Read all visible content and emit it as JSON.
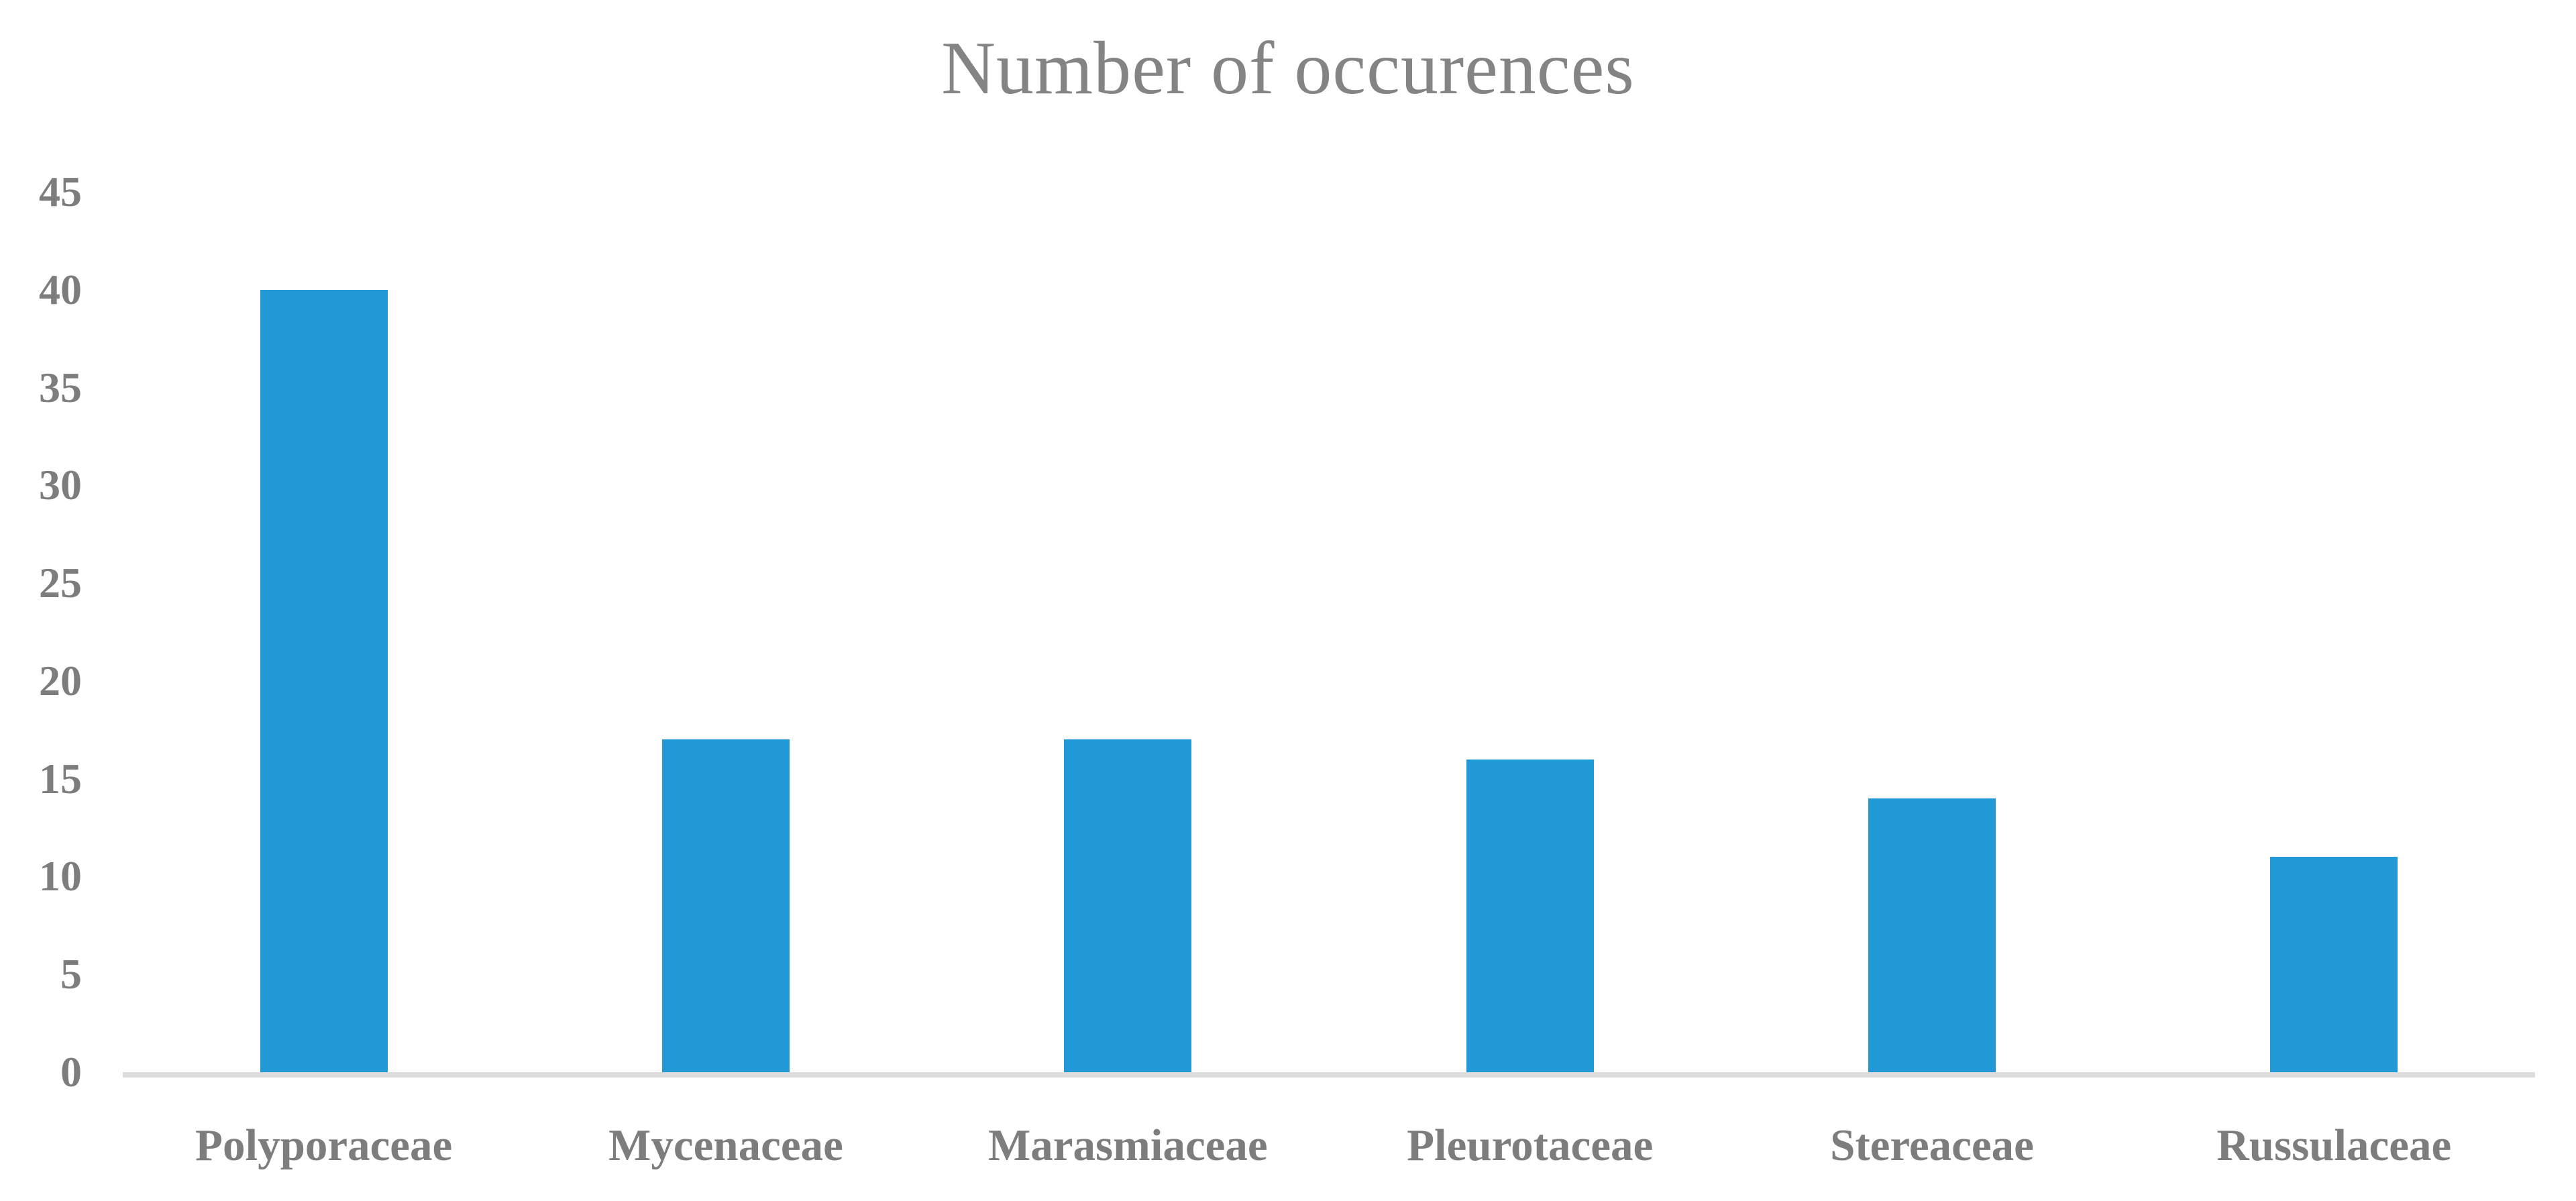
{
  "title": "Number of occurences",
  "colors": {
    "bar": "#2099d6",
    "title_text": "#848484",
    "label_text": "#7d7d7d",
    "axis_line": "#dcdcdc",
    "background": "#ffffff"
  },
  "chart_data": {
    "type": "bar",
    "title": "Number of occurences",
    "categories": [
      "Polyporaceae",
      "Mycenaceae",
      "Marasmiaceae",
      "Pleurotaceae",
      "Stereaceae",
      "Russulaceae"
    ],
    "values": [
      40,
      17,
      17,
      16,
      14,
      11
    ],
    "xlabel": "",
    "ylabel": "",
    "ylim": [
      0,
      45
    ],
    "yticks": [
      45,
      40,
      35,
      30,
      25,
      20,
      15,
      10,
      5,
      0
    ],
    "grid": false,
    "legend": "none",
    "bar_color": "#2099d6"
  }
}
